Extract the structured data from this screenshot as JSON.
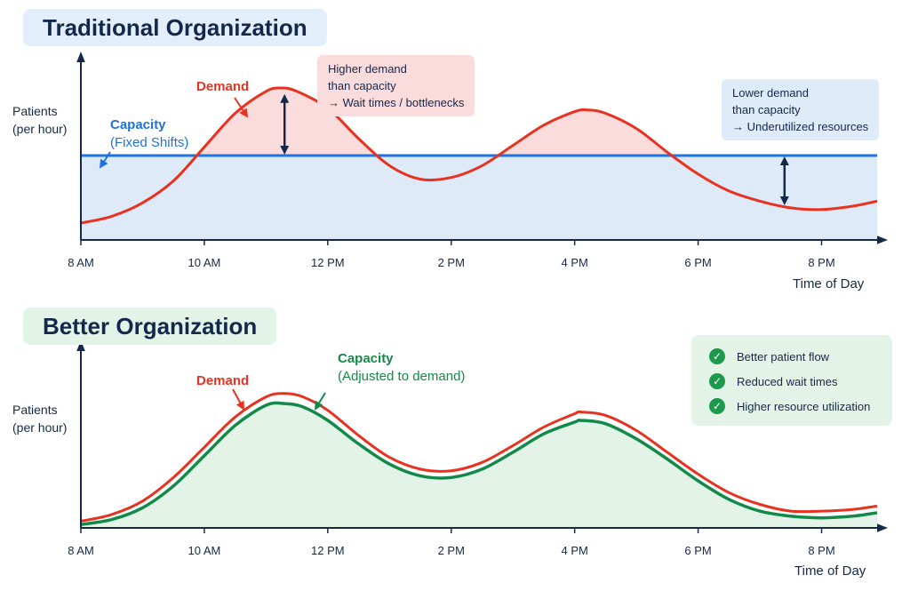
{
  "colors": {
    "demand": "#e8321f",
    "capacity_fixed": "#1f73e0",
    "capacity_adjusted": "#13894a",
    "axis": "#15284a",
    "over_fill": "#fbdcdc",
    "under_fill": "#dfeaf8",
    "green_fill": "#e3f3e7"
  },
  "top": {
    "title": "Traditional Organization",
    "ylabel": [
      "Patients",
      "(per hour)"
    ],
    "xlabel": "Time of Day",
    "demand_label": "Demand",
    "capacity_label": "Capacity",
    "capacity_sub": "(Fixed Shifts)",
    "note_high": [
      "Higher demand",
      "than capacity",
      "→ Wait times / bottlenecks"
    ],
    "note_low": [
      "Lower demand",
      "than capacity",
      "→ Underutilized resources"
    ]
  },
  "bottom": {
    "title": "Better Organization",
    "ylabel": [
      "Patients",
      "(per hour)"
    ],
    "xlabel": "Time of Day",
    "demand_label": "Demand",
    "capacity_label": "Capacity",
    "capacity_sub": "(Adjusted to demand)",
    "benefits": [
      "Better patient flow",
      "Reduced wait times",
      "Higher resource utilization"
    ],
    "benefit_icon": "check-circle-icon"
  },
  "chart_data": [
    {
      "type": "line",
      "title": "Traditional Organization",
      "xlabel": "Time of Day",
      "ylabel": "Patients (per hour)",
      "x_ticks": [
        "8 AM",
        "10 AM",
        "12 PM",
        "2 PM",
        "4 PM",
        "6 PM",
        "8 PM"
      ],
      "xlim": [
        8,
        20.9
      ],
      "ylim": [
        0,
        100
      ],
      "grid": false,
      "series": [
        {
          "name": "Demand",
          "x": [
            8,
            8.5,
            9,
            9.5,
            10,
            10.5,
            11,
            11.25,
            11.5,
            12,
            12.5,
            13,
            13.5,
            14,
            14.5,
            15,
            15.5,
            16,
            16.2,
            16.5,
            17,
            17.5,
            18,
            18.5,
            19,
            19.5,
            20,
            20.5,
            20.9
          ],
          "y": [
            10,
            14,
            22,
            35,
            55,
            75,
            88,
            90,
            88,
            78,
            60,
            44,
            36,
            37,
            44,
            56,
            68,
            76,
            77,
            75,
            66,
            52,
            39,
            29,
            23,
            19,
            18,
            20,
            23
          ]
        },
        {
          "name": "Capacity",
          "x": [
            8,
            20.9
          ],
          "y": [
            50,
            50
          ]
        }
      ],
      "annotations": [
        "Higher demand than capacity → Wait times / bottlenecks",
        "Lower demand than capacity → Underutilized resources"
      ]
    },
    {
      "type": "area",
      "title": "Better Organization",
      "xlabel": "Time of Day",
      "ylabel": "Patients (per hour)",
      "x_ticks": [
        "8 AM",
        "10 AM",
        "12 PM",
        "2 PM",
        "4 PM",
        "6 PM",
        "8 PM"
      ],
      "xlim": [
        8,
        20.9
      ],
      "ylim": [
        0,
        100
      ],
      "grid": false,
      "series": [
        {
          "name": "Demand",
          "x": [
            8,
            8.5,
            9,
            9.5,
            10,
            10.5,
            11,
            11.3,
            11.6,
            12,
            12.5,
            13,
            13.5,
            14,
            14.5,
            15,
            15.5,
            16,
            16.1,
            16.5,
            17,
            17.5,
            18,
            18.5,
            19,
            19.5,
            20,
            20.5,
            20.9
          ],
          "y": [
            4,
            8,
            16,
            30,
            48,
            66,
            78,
            80,
            78,
            70,
            55,
            42,
            35,
            34,
            39,
            49,
            60,
            68,
            69,
            67,
            58,
            45,
            32,
            21,
            14,
            10,
            10,
            11,
            13
          ]
        },
        {
          "name": "Capacity",
          "x": [
            8,
            8.5,
            9,
            9.5,
            10,
            10.5,
            11,
            11.3,
            11.6,
            12,
            12.5,
            13,
            13.5,
            14,
            14.5,
            15,
            15.5,
            16,
            16.1,
            16.5,
            17,
            17.5,
            18,
            18.5,
            19,
            19.5,
            20,
            20.5,
            20.9
          ],
          "y": [
            2,
            5,
            12,
            25,
            43,
            61,
            73,
            74,
            72,
            64,
            50,
            38,
            31,
            30,
            35,
            45,
            56,
            63,
            64,
            62,
            53,
            41,
            28,
            17,
            10,
            7,
            6,
            7,
            9
          ]
        }
      ]
    }
  ]
}
